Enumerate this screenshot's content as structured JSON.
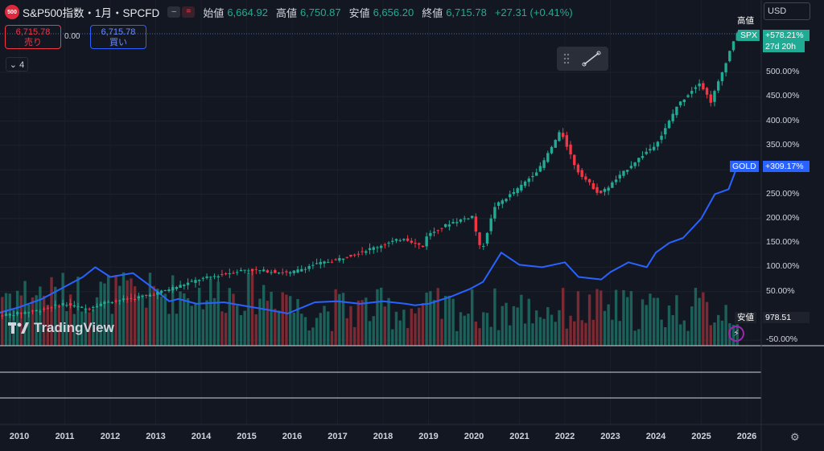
{
  "header": {
    "symbol_badge": "500",
    "symbol_title": "S&P500指数・1月・SPCFD",
    "pill_icons": [
      "minus-icon",
      "double-bar-icon"
    ],
    "open_label": "始値",
    "open": "6,664.92",
    "high_label": "高値",
    "high": "6,750.87",
    "low_label": "安値",
    "low": "6,656.20",
    "close_label": "終値",
    "close": "6,715.78",
    "change": "+27.31 (+0.41%)"
  },
  "trade": {
    "sell_price": "6,715.78",
    "sell_label": "売り",
    "spread": "0.00",
    "buy_price": "6,715.78",
    "buy_label": "買い"
  },
  "legend_toggle": "4",
  "currency": "USD",
  "watermark": "TradingView",
  "tags": {
    "high_label": "高値",
    "spx_name": "SPX",
    "spx_pct": "+578.21%",
    "spx_countdown": "27d 20h",
    "gold_name": "GOLD",
    "gold_pct": "+309.17%",
    "low_label": "安値",
    "low_value": "978.51"
  },
  "colors": {
    "up": "#22ab94",
    "down": "#f23645",
    "gold_line": "#2962ff",
    "volume_up": "#1f6f63",
    "volume_down": "#8e2d35",
    "background": "#131722"
  },
  "chart_data": {
    "type": "line",
    "x_labels": [
      "2010",
      "2011",
      "2012",
      "2013",
      "2014",
      "2015",
      "2016",
      "2017",
      "2018",
      "2019",
      "2020",
      "2021",
      "2022",
      "2023",
      "2024",
      "2025",
      "2026"
    ],
    "y_tick_labels": [
      "-50.00%",
      "50.00%",
      "100.00%",
      "150.00%",
      "200.00%",
      "250.00%",
      "300.00%",
      "350.00%",
      "400.00%",
      "450.00%",
      "500.00%"
    ],
    "y_scale": "percent",
    "ylim": [
      -50,
      600
    ],
    "series": [
      {
        "name": "SPX",
        "style": "candlestick",
        "x": [
          2009.5,
          2010,
          2010.5,
          2011,
          2011.5,
          2012,
          2012.5,
          2013,
          2013.5,
          2014,
          2014.5,
          2015,
          2015.5,
          2016,
          2016.5,
          2017,
          2017.5,
          2018,
          2018.5,
          2018.96,
          2019,
          2019.5,
          2020,
          2020.2,
          2020.5,
          2021,
          2021.5,
          2021.95,
          2022.3,
          2022.8,
          2023,
          2023.5,
          2024,
          2024.2,
          2024.5,
          2025,
          2025.25,
          2025.5,
          2025.8
        ],
        "values": [
          0,
          5,
          12,
          25,
          15,
          30,
          35,
          45,
          60,
          75,
          85,
          95,
          92,
          88,
          105,
          115,
          130,
          145,
          160,
          140,
          165,
          190,
          205,
          130,
          225,
          260,
          305,
          380,
          300,
          250,
          265,
          310,
          350,
          375,
          430,
          480,
          440,
          500,
          578.21
        ]
      },
      {
        "name": "GOLD",
        "style": "line",
        "x": [
          2009.5,
          2010,
          2010.5,
          2011,
          2011.4,
          2011.67,
          2012,
          2012.5,
          2012.9,
          2013.3,
          2013.5,
          2013.9,
          2014.5,
          2015,
          2015.5,
          2015.9,
          2016.5,
          2017,
          2017.5,
          2018,
          2018.5,
          2018.7,
          2019,
          2019.5,
          2019.9,
          2020.2,
          2020.6,
          2021,
          2021.5,
          2022,
          2022.3,
          2022.8,
          2023,
          2023.4,
          2023.8,
          2024,
          2024.3,
          2024.6,
          2025,
          2025.3,
          2025.6,
          2025.8
        ],
        "values": [
          5,
          18,
          35,
          60,
          80,
          100,
          80,
          88,
          60,
          30,
          35,
          25,
          28,
          20,
          12,
          5,
          28,
          30,
          25,
          30,
          25,
          22,
          25,
          40,
          55,
          70,
          130,
          105,
          100,
          110,
          80,
          75,
          90,
          110,
          100,
          130,
          150,
          160,
          200,
          250,
          260,
          309.17
        ]
      }
    ],
    "volume": {
      "name": "Volume"
    },
    "annotations": [
      "高値",
      "安値 978.51"
    ]
  }
}
